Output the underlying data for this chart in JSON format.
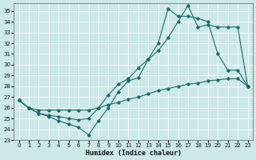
{
  "xlabel": "Humidex (Indice chaleur)",
  "ylabel": "",
  "bg_color": "#cce8e8",
  "line_color": "#1a6b6b",
  "grid_color": "#ffffff",
  "xlim": [
    -0.5,
    23.5
  ],
  "ylim": [
    23,
    35.7
  ],
  "yticks": [
    23,
    24,
    25,
    26,
    27,
    28,
    29,
    30,
    31,
    32,
    33,
    34,
    35
  ],
  "xticks": [
    0,
    1,
    2,
    3,
    4,
    5,
    6,
    7,
    8,
    9,
    10,
    11,
    12,
    13,
    14,
    15,
    16,
    17,
    18,
    19,
    20,
    21,
    22,
    23
  ],
  "line1_x": [
    0,
    1,
    2,
    3,
    4,
    5,
    6,
    7,
    8,
    9,
    10,
    11,
    12,
    13,
    14,
    15,
    16,
    17,
    18,
    19,
    20,
    21,
    22,
    23
  ],
  "line1_y": [
    26.7,
    26.0,
    25.5,
    25.2,
    24.8,
    24.5,
    24.2,
    23.5,
    24.8,
    26.0,
    27.5,
    28.5,
    28.8,
    30.5,
    32.0,
    35.2,
    34.5,
    34.5,
    34.3,
    34.0,
    31.0,
    29.5,
    29.5,
    28.0
  ],
  "line2_x": [
    0,
    1,
    2,
    3,
    4,
    5,
    6,
    7,
    8,
    9,
    10,
    11,
    12,
    13,
    14,
    15,
    16,
    17,
    18,
    19,
    20,
    21,
    22,
    23
  ],
  "line2_y": [
    26.7,
    26.0,
    25.5,
    25.3,
    25.2,
    25.0,
    24.9,
    25.0,
    26.0,
    27.2,
    28.2,
    28.7,
    29.7,
    30.5,
    31.3,
    32.5,
    34.0,
    35.5,
    33.5,
    33.7,
    33.5,
    33.5,
    33.5,
    28.0
  ],
  "line3_x": [
    0,
    1,
    2,
    3,
    4,
    5,
    6,
    7,
    8,
    9,
    10,
    11,
    12,
    13,
    14,
    15,
    16,
    17,
    18,
    19,
    20,
    21,
    22,
    23
  ],
  "line3_y": [
    26.7,
    26.0,
    25.8,
    25.8,
    25.8,
    25.8,
    25.8,
    25.8,
    26.0,
    26.3,
    26.5,
    26.8,
    27.0,
    27.3,
    27.6,
    27.8,
    28.0,
    28.2,
    28.3,
    28.5,
    28.6,
    28.7,
    28.7,
    28.0
  ]
}
